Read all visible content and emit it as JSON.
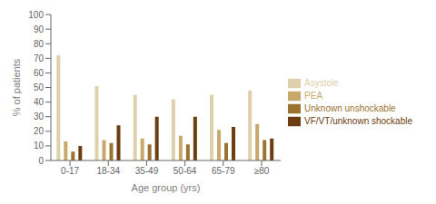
{
  "chart_data": {
    "type": "bar",
    "categories": [
      "0-17",
      "18-34",
      "35-49",
      "50-64",
      "65-79",
      "≥80"
    ],
    "series": [
      {
        "name": "Asystole",
        "color": "#ddd0aa",
        "values": [
          72,
          51,
          45,
          42,
          45,
          48
        ]
      },
      {
        "name": "PEA",
        "color": "#c8a86b",
        "values": [
          13,
          14,
          15,
          17,
          21,
          25
        ]
      },
      {
        "name": "Unknown unshockable",
        "color": "#9b7230",
        "values": [
          6,
          12,
          11,
          11,
          12,
          14
        ]
      },
      {
        "name": "VF/VT/unknown shockable",
        "color": "#6b3d10",
        "values": [
          10,
          24,
          30,
          30,
          23,
          15
        ]
      }
    ],
    "xlabel": "Age group (yrs)",
    "ylabel": "% of patients",
    "ylim": [
      0,
      100
    ],
    "yticks": [
      0,
      10,
      20,
      30,
      40,
      50,
      60,
      70,
      80,
      90,
      100
    ],
    "grid": false,
    "legend": "right"
  }
}
